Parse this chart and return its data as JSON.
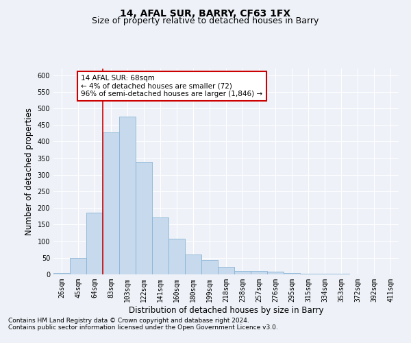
{
  "title": "14, AFAL SUR, BARRY, CF63 1FX",
  "subtitle": "Size of property relative to detached houses in Barry",
  "xlabel": "Distribution of detached houses by size in Barry",
  "ylabel": "Number of detached properties",
  "categories": [
    "26sqm",
    "45sqm",
    "64sqm",
    "83sqm",
    "103sqm",
    "122sqm",
    "141sqm",
    "160sqm",
    "180sqm",
    "199sqm",
    "218sqm",
    "238sqm",
    "257sqm",
    "276sqm",
    "295sqm",
    "315sqm",
    "334sqm",
    "353sqm",
    "372sqm",
    "392sqm",
    "411sqm"
  ],
  "values": [
    5,
    50,
    185,
    428,
    475,
    338,
    172,
    108,
    60,
    43,
    22,
    10,
    10,
    8,
    5,
    3,
    2,
    2,
    1,
    1,
    1
  ],
  "bar_color": "#c6d9ed",
  "bar_edge_color": "#8ab4d4",
  "vline_x": 2.5,
  "vline_color": "#cc0000",
  "ylim": [
    0,
    620
  ],
  "yticks": [
    0,
    50,
    100,
    150,
    200,
    250,
    300,
    350,
    400,
    450,
    500,
    550,
    600
  ],
  "annotation_text": "14 AFAL SUR: 68sqm\n← 4% of detached houses are smaller (72)\n96% of semi-detached houses are larger (1,846) →",
  "annotation_box_color": "#ffffff",
  "annotation_box_edge": "#cc0000",
  "footer_line1": "Contains HM Land Registry data © Crown copyright and database right 2024.",
  "footer_line2": "Contains public sector information licensed under the Open Government Licence v3.0.",
  "background_color": "#eef2f8",
  "plot_bg_color": "#eef2f8",
  "grid_color": "#ffffff",
  "title_fontsize": 10,
  "subtitle_fontsize": 9,
  "axis_label_fontsize": 8.5,
  "tick_fontsize": 7,
  "footer_fontsize": 6.5,
  "ann_fontsize": 7.5
}
